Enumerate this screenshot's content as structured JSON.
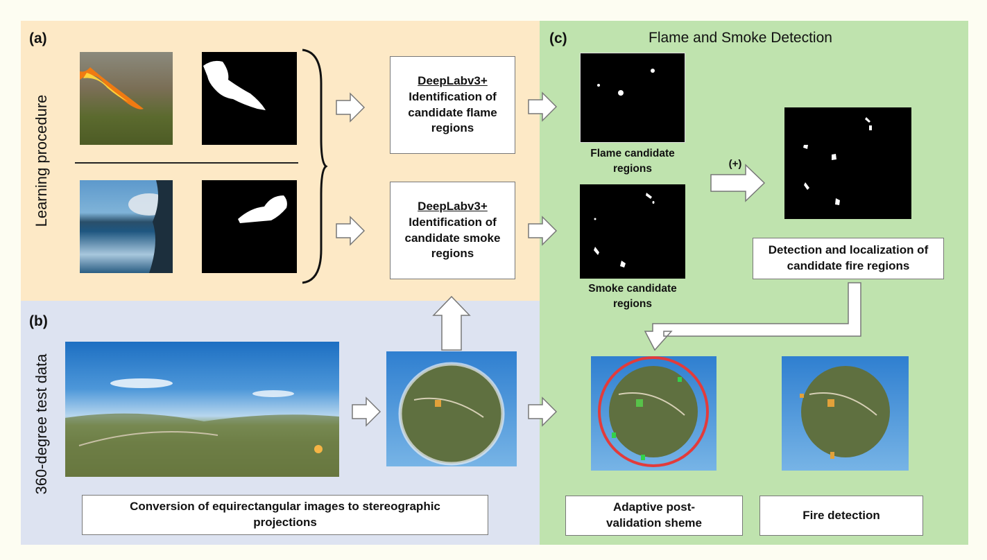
{
  "panel_a": {
    "letter": "(a)",
    "side_label": "Learning procedure",
    "flame_box": {
      "title": "DeepLabv3+",
      "text": "Identification of candidate flame regions"
    },
    "smoke_box": {
      "title": "DeepLabv3+",
      "text": "Identification of candidate smoke regions"
    }
  },
  "panel_b": {
    "letter": "(b)",
    "side_label": "360-degree test data",
    "conversion_box": "Conversion of equirectangular images to stereographic projections"
  },
  "panel_c": {
    "letter": "(c)",
    "title": "Flame and Smoke Detection",
    "flame_caption": "Flame candidate regions",
    "smoke_caption": "Smoke candidate regions",
    "plus_label": "(+)",
    "detection_box": "Detection and localization of candidate fire regions",
    "postvalidation_box": "Adaptive post-validation sheme",
    "fire_box": "Fire detection"
  },
  "colors": {
    "panel_a_bg": "#fde9c6",
    "panel_b_bg": "#dde3f1",
    "panel_c_bg": "#bfe3ae",
    "validation_circle": "#e23b3b",
    "arrow_fill": "#ffffff",
    "arrow_stroke": "#777777"
  }
}
